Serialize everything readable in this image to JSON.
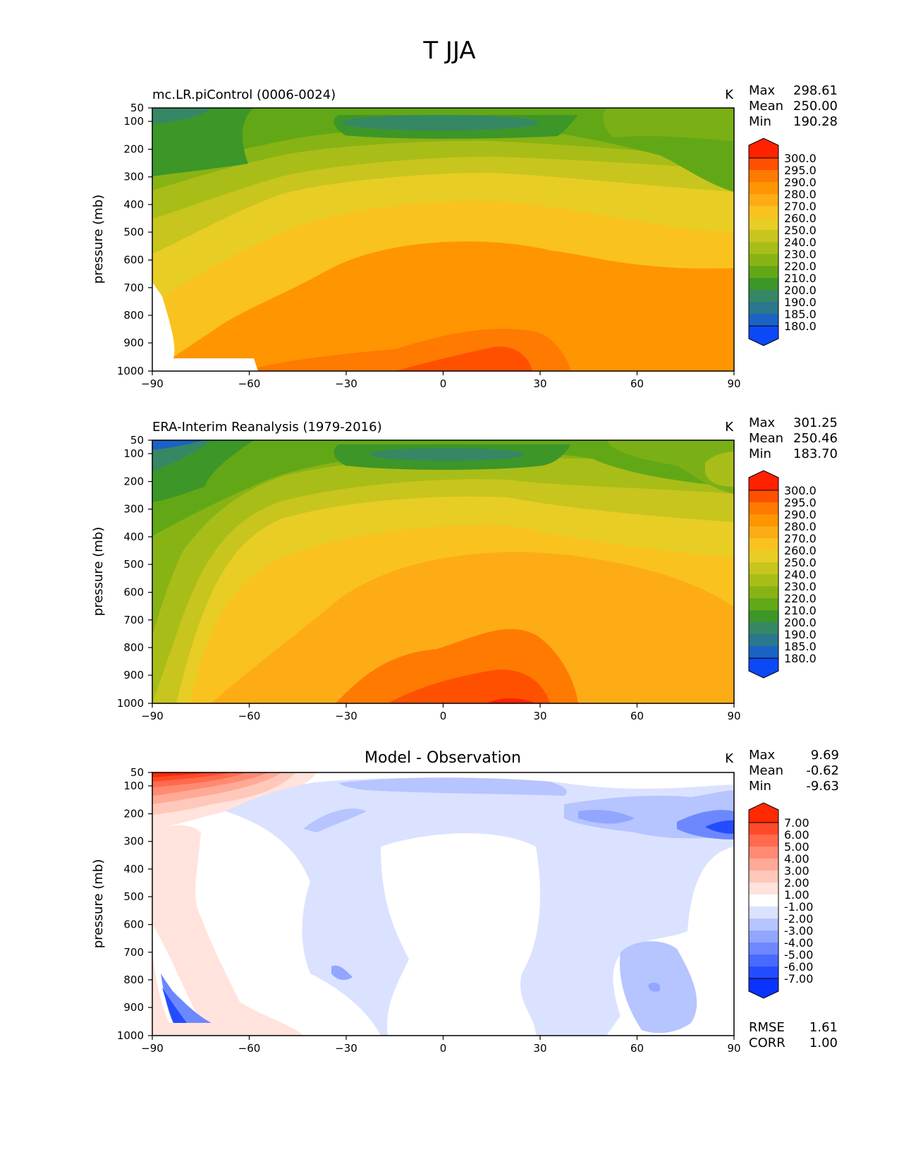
{
  "figure": {
    "title": "T JJA"
  },
  "chart_data": [
    {
      "type": "contour",
      "title": "mc.LR.piControl (0006-0024)",
      "units": "K",
      "xlabel": "",
      "ylabel": "pressure (mb)",
      "xlim": [
        -90,
        90
      ],
      "x_ticks": [
        "−90",
        "−60",
        "−30",
        "0",
        "30",
        "60",
        "90"
      ],
      "y_ticks": [
        "50",
        "100",
        "200",
        "300",
        "400",
        "500",
        "600",
        "700",
        "800",
        "900",
        "1000"
      ],
      "stats": [
        {
          "label": "Max",
          "value": "298.61"
        },
        {
          "label": "Mean",
          "value": "250.00"
        },
        {
          "label": "Min",
          "value": "190.28"
        }
      ],
      "colorbar": {
        "levels": [
          "300.0",
          "295.0",
          "290.0",
          "280.0",
          "270.0",
          "260.0",
          "250.0",
          "240.0",
          "230.0",
          "220.0",
          "210.0",
          "200.0",
          "190.0",
          "185.0",
          "180.0"
        ],
        "colors": [
          "#ff2200",
          "#ff5000",
          "#ff7a00",
          "#ff9500",
          "#fdac16",
          "#fac21e",
          "#e8cd24",
          "#c8c51e",
          "#a9bd18",
          "#88b314",
          "#62a816",
          "#3d9628",
          "#368764",
          "#2a778e",
          "#1a63c4",
          "#0c48f5"
        ]
      }
    },
    {
      "type": "contour",
      "title": "ERA-Interim Reanalysis (1979-2016)",
      "units": "K",
      "xlabel": "",
      "ylabel": "pressure (mb)",
      "xlim": [
        -90,
        90
      ],
      "x_ticks": [
        "−90",
        "−60",
        "−30",
        "0",
        "30",
        "60",
        "90"
      ],
      "y_ticks": [
        "50",
        "100",
        "200",
        "300",
        "400",
        "500",
        "600",
        "700",
        "800",
        "900",
        "1000"
      ],
      "stats": [
        {
          "label": "Max",
          "value": "301.25"
        },
        {
          "label": "Mean",
          "value": "250.46"
        },
        {
          "label": "Min",
          "value": "183.70"
        }
      ],
      "colorbar": {
        "levels": [
          "300.0",
          "295.0",
          "290.0",
          "280.0",
          "270.0",
          "260.0",
          "250.0",
          "240.0",
          "230.0",
          "220.0",
          "210.0",
          "200.0",
          "190.0",
          "185.0",
          "180.0"
        ],
        "colors": [
          "#ff2200",
          "#ff5000",
          "#ff7a00",
          "#ff9500",
          "#fdac16",
          "#fac21e",
          "#e8cd24",
          "#c8c51e",
          "#a9bd18",
          "#88b314",
          "#62a816",
          "#3d9628",
          "#368764",
          "#2a778e",
          "#1a63c4",
          "#0c48f5"
        ]
      }
    },
    {
      "type": "contour",
      "title": "Model - Observation",
      "units": "K",
      "xlabel": "",
      "ylabel": "pressure (mb)",
      "xlim": [
        -90,
        90
      ],
      "x_ticks": [
        "−90",
        "−60",
        "−30",
        "0",
        "30",
        "60",
        "90"
      ],
      "y_ticks": [
        "50",
        "100",
        "200",
        "300",
        "400",
        "500",
        "600",
        "700",
        "800",
        "900",
        "1000"
      ],
      "stats": [
        {
          "label": "Max",
          "value": "9.69"
        },
        {
          "label": "Mean",
          "value": "-0.62"
        },
        {
          "label": "Min",
          "value": "-9.63"
        }
      ],
      "metrics": [
        {
          "label": "RMSE",
          "value": "1.61"
        },
        {
          "label": "CORR",
          "value": "1.00"
        }
      ],
      "colorbar": {
        "levels": [
          "7.00",
          "6.00",
          "5.00",
          "4.00",
          "3.00",
          "2.00",
          "1.00",
          "-1.00",
          "-2.00",
          "-3.00",
          "-4.00",
          "-5.00",
          "-6.00",
          "-7.00"
        ],
        "colors": [
          "#ff2a00",
          "#ff4a2a",
          "#ff6a4e",
          "#ff8a72",
          "#ffaa96",
          "#ffc8ba",
          "#ffe3dc",
          "#ffffff",
          "#dbe2ff",
          "#b6c4ff",
          "#92a6ff",
          "#6d88ff",
          "#496aff",
          "#244cff",
          "#0a33ff"
        ]
      }
    }
  ]
}
